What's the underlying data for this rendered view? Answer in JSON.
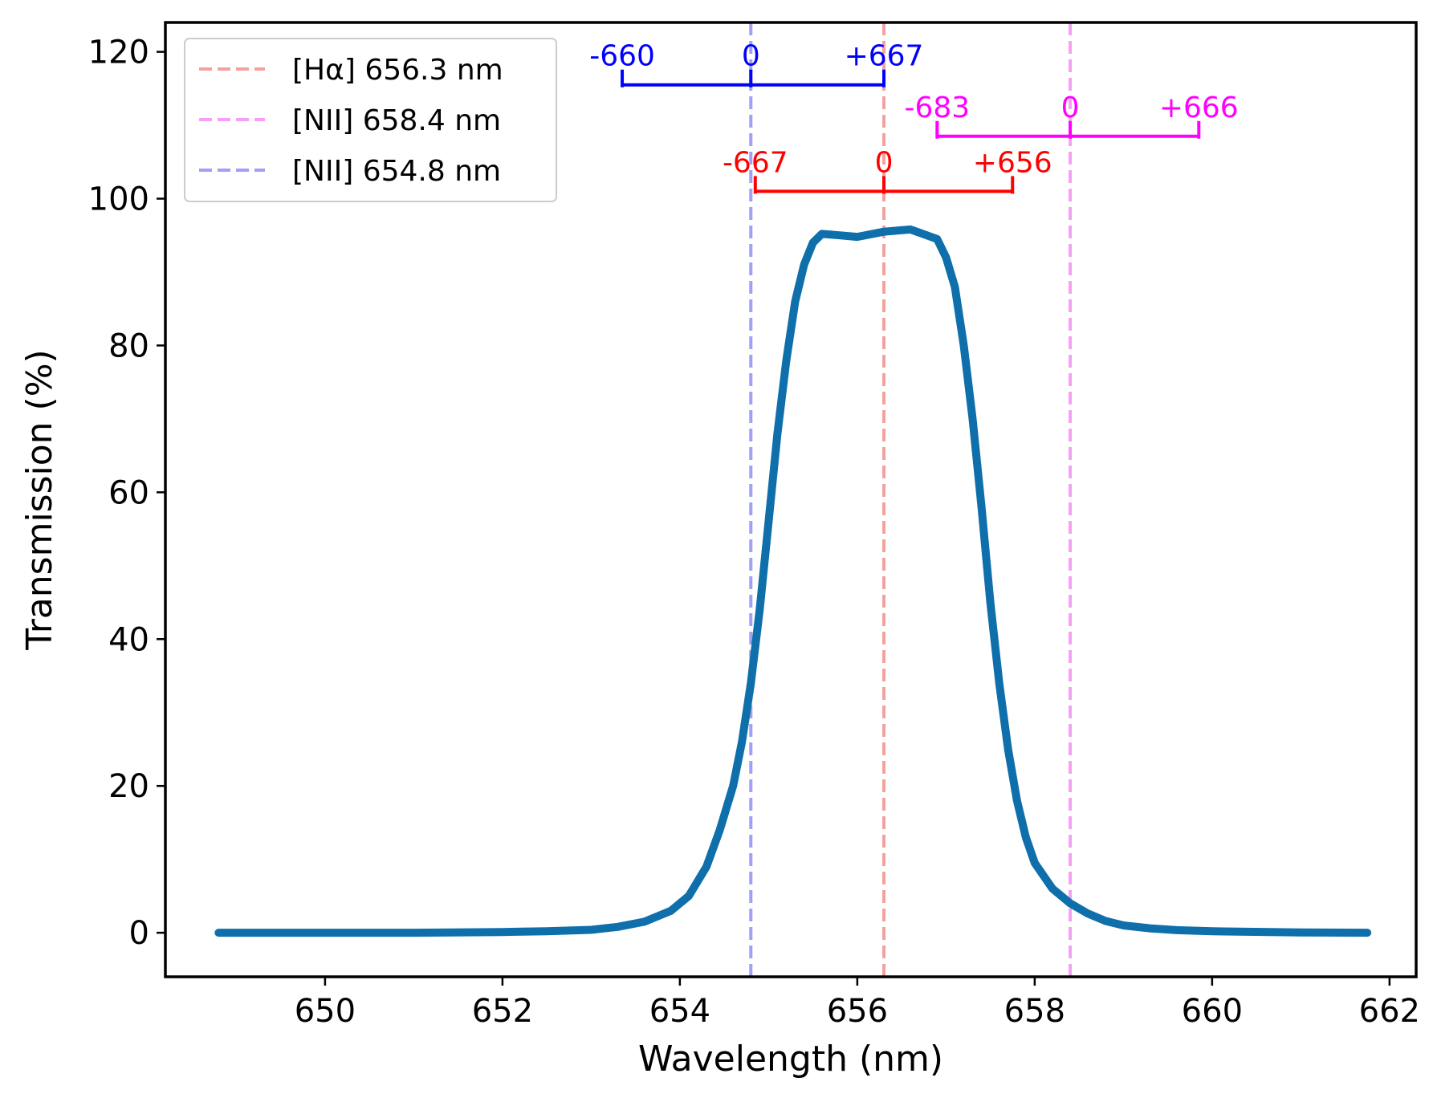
{
  "chart_data": {
    "type": "line",
    "xlabel": "Wavelength (nm)",
    "ylabel": "Transmission (%)",
    "xlim": [
      648.2,
      662.3
    ],
    "ylim": [
      -6,
      124
    ],
    "xticks": [
      650,
      652,
      654,
      656,
      658,
      660,
      662
    ],
    "yticks": [
      0,
      20,
      40,
      60,
      80,
      100,
      120
    ],
    "grid": false,
    "legend": {
      "placement": "top-left",
      "entries": [
        {
          "label": "[Hα] 656.3 nm",
          "color": "#f5a0a0",
          "style": "dashed"
        },
        {
          "label": "[NII] 658.4 nm",
          "color": "#f5a0f5",
          "style": "dashed"
        },
        {
          "label": "[NII] 654.8 nm",
          "color": "#a0a0f5",
          "style": "dashed"
        }
      ]
    },
    "series": [
      {
        "color": "#0e6fab",
        "x": [
          648.8,
          650.0,
          651.0,
          652.0,
          652.5,
          653.0,
          653.3,
          653.6,
          653.9,
          654.1,
          654.3,
          654.45,
          654.6,
          654.7,
          654.8,
          654.9,
          655.0,
          655.1,
          655.2,
          655.3,
          655.4,
          655.5,
          655.6,
          655.8,
          656.0,
          656.3,
          656.6,
          656.9,
          657.0,
          657.1,
          657.2,
          657.3,
          657.4,
          657.5,
          657.6,
          657.7,
          657.8,
          657.9,
          658.0,
          658.2,
          658.4,
          658.6,
          658.8,
          659.0,
          659.3,
          659.6,
          660.0,
          661.0,
          661.75
        ],
        "y": [
          0,
          0,
          0,
          0.1,
          0.2,
          0.4,
          0.8,
          1.5,
          3.0,
          5.0,
          9.0,
          14.0,
          20.0,
          26.0,
          34.0,
          44.0,
          56.0,
          68.0,
          78.0,
          86.0,
          91.0,
          94.0,
          95.2,
          95.0,
          94.8,
          95.5,
          95.8,
          94.5,
          92.0,
          88.0,
          80.0,
          70.0,
          58.0,
          45.0,
          34.0,
          25.0,
          18.0,
          13.0,
          9.5,
          6.0,
          4.0,
          2.6,
          1.6,
          1.0,
          0.6,
          0.35,
          0.2,
          0.05,
          0
        ]
      }
    ],
    "vlines": [
      {
        "x": 656.3,
        "color": "#f5a0a0"
      },
      {
        "x": 658.4,
        "color": "#f5a0f5"
      },
      {
        "x": 654.8,
        "color": "#a0a0f5"
      }
    ],
    "brackets": [
      {
        "color": "#0000ff",
        "y": 115.5,
        "ticks": [
          {
            "x": 653.35,
            "label": "-660"
          },
          {
            "x": 654.8,
            "label": "0"
          },
          {
            "x": 656.3,
            "label": "+667"
          }
        ]
      },
      {
        "color": "#ff00ff",
        "y": 108.5,
        "ticks": [
          {
            "x": 656.9,
            "label": "-683"
          },
          {
            "x": 658.4,
            "label": "0"
          },
          {
            "x": 659.85,
            "label": "+666"
          }
        ]
      },
      {
        "color": "#ff0000",
        "y": 101.0,
        "ticks": [
          {
            "x": 654.85,
            "label": "-667"
          },
          {
            "x": 656.3,
            "label": "0"
          },
          {
            "x": 657.75,
            "label": "+656"
          }
        ]
      }
    ]
  }
}
